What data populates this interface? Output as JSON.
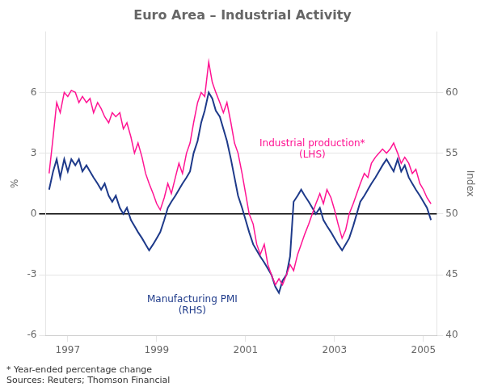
{
  "chart_data": {
    "type": "line",
    "title": "Euro Area – Industrial Activity",
    "ylabel": "%",
    "y2label": "Index",
    "footnotes": [
      "* Year-ended percentage change",
      "Sources: Reuters; Thomson Financial"
    ],
    "annotations": [
      {
        "text": "Industrial production*\n(LHS)",
        "x": 2002.5,
        "y": 3.2,
        "axis": "y",
        "color": "#FF1493"
      },
      {
        "text": "Manufacturing PMI\n(RHS)",
        "x": 1999.8,
        "y": -4.5,
        "axis": "y",
        "color": "#1E3A8A"
      }
    ],
    "xlim": [
      1996.5,
      2005.3
    ],
    "xticks": [
      1997,
      1999,
      2001,
      2003,
      2005
    ],
    "ylim": [
      -6,
      9
    ],
    "yticks": [
      -6,
      -3,
      0,
      3,
      6
    ],
    "y2lim": [
      40,
      65
    ],
    "y2ticks": [
      40,
      45,
      50,
      55,
      60
    ],
    "grid": "y",
    "x": [
      1996.58,
      1996.67,
      1996.75,
      1996.83,
      1996.92,
      1997.0,
      1997.08,
      1997.17,
      1997.25,
      1997.33,
      1997.42,
      1997.5,
      1997.58,
      1997.67,
      1997.75,
      1997.83,
      1997.92,
      1998.0,
      1998.08,
      1998.17,
      1998.25,
      1998.33,
      1998.42,
      1998.5,
      1998.58,
      1998.67,
      1998.75,
      1998.83,
      1998.92,
      1999.0,
      1999.08,
      1999.17,
      1999.25,
      1999.33,
      1999.42,
      1999.5,
      1999.58,
      1999.67,
      1999.75,
      1999.83,
      1999.92,
      2000.0,
      2000.08,
      2000.17,
      2000.25,
      2000.33,
      2000.42,
      2000.5,
      2000.58,
      2000.67,
      2000.75,
      2000.83,
      2000.92,
      2001.0,
      2001.08,
      2001.17,
      2001.25,
      2001.33,
      2001.42,
      2001.5,
      2001.58,
      2001.67,
      2001.75,
      2001.83,
      2001.92,
      2002.0,
      2002.08,
      2002.17,
      2002.25,
      2002.33,
      2002.42,
      2002.5,
      2002.58,
      2002.67,
      2002.75,
      2002.83,
      2002.92,
      2003.0,
      2003.08,
      2003.17,
      2003.25,
      2003.33,
      2003.42,
      2003.5,
      2003.58,
      2003.67,
      2003.75,
      2003.83,
      2003.92,
      2004.0,
      2004.08,
      2004.17,
      2004.25,
      2004.33,
      2004.42,
      2004.5,
      2004.58,
      2004.67,
      2004.75,
      2004.83,
      2004.92,
      2005.0,
      2005.08,
      2005.17
    ],
    "series": [
      {
        "color": "#FF1493",
        "axis": "y",
        "values": [
          2.0,
          3.8,
          5.5,
          5.0,
          6.0,
          5.8,
          6.1,
          6.0,
          5.5,
          5.8,
          5.5,
          5.7,
          5.0,
          5.5,
          5.2,
          4.8,
          4.5,
          5.0,
          4.8,
          5.0,
          4.2,
          4.5,
          3.8,
          3.0,
          3.5,
          2.8,
          2.0,
          1.5,
          1.0,
          0.5,
          0.2,
          0.8,
          1.5,
          1.0,
          1.8,
          2.5,
          2.0,
          3.0,
          3.5,
          4.5,
          5.5,
          6.0,
          5.8,
          7.5,
          6.5,
          6.0,
          5.5,
          5.0,
          5.5,
          4.5,
          3.5,
          3.0,
          2.0,
          1.0,
          0.0,
          -0.5,
          -1.5,
          -2.0,
          -1.5,
          -2.5,
          -3.0,
          -3.5,
          -3.2,
          -3.5,
          -3.0,
          -2.5,
          -2.8,
          -2.0,
          -1.5,
          -1.0,
          -0.5,
          0.0,
          0.5,
          1.0,
          0.5,
          1.2,
          0.8,
          0.2,
          -0.5,
          -1.2,
          -0.8,
          0.0,
          0.5,
          1.0,
          1.5,
          2.0,
          1.8,
          2.5,
          2.8,
          3.0,
          3.2,
          3.0,
          3.2,
          3.5,
          3.0,
          2.5,
          2.8,
          2.5,
          2.0,
          2.2,
          1.5,
          1.2,
          0.8,
          0.5
        ]
      },
      {
        "color": "#1E3A8A",
        "axis": "y2",
        "values": [
          52.0,
          53.5,
          54.5,
          53.0,
          54.5,
          53.5,
          54.5,
          54.0,
          54.5,
          53.5,
          54.0,
          53.5,
          53.0,
          52.5,
          52.0,
          52.5,
          51.5,
          51.0,
          51.5,
          50.5,
          50.0,
          50.5,
          49.5,
          49.0,
          48.5,
          48.0,
          47.5,
          47.0,
          47.5,
          48.0,
          48.5,
          49.5,
          50.5,
          51.0,
          51.5,
          52.0,
          52.5,
          53.0,
          53.5,
          55.0,
          56.0,
          57.5,
          58.5,
          60.0,
          59.5,
          58.5,
          58.0,
          57.0,
          56.0,
          54.5,
          53.0,
          51.5,
          50.5,
          49.5,
          48.5,
          47.5,
          47.0,
          46.5,
          46.0,
          45.5,
          45.0,
          44.0,
          43.5,
          44.5,
          45.0,
          46.5,
          51.0,
          51.5,
          52.0,
          51.5,
          51.0,
          50.5,
          50.0,
          50.5,
          49.5,
          49.0,
          48.5,
          48.0,
          47.5,
          47.0,
          47.5,
          48.0,
          49.0,
          50.0,
          51.0,
          51.5,
          52.0,
          52.5,
          53.0,
          53.5,
          54.0,
          54.5,
          54.0,
          53.5,
          54.5,
          53.5,
          54.0,
          53.0,
          52.5,
          52.0,
          51.5,
          51.0,
          50.5,
          49.5
        ]
      }
    ]
  }
}
